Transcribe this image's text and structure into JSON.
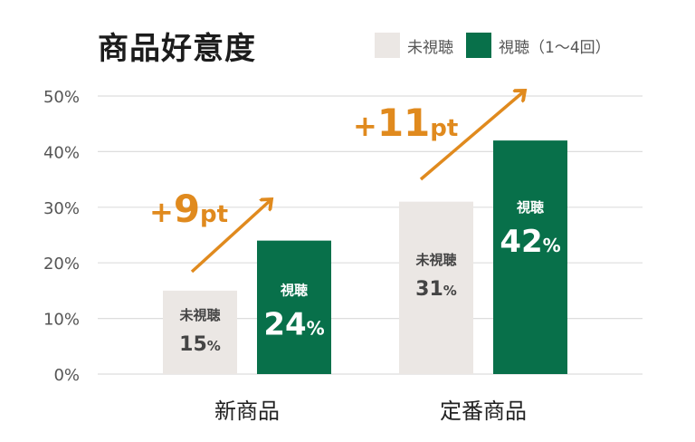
{
  "colors": {
    "unwatched": "#ebe7e4",
    "watched": "#08704a",
    "grid": "#dddddd",
    "arrow": "#e08a1e",
    "text_dark": "#444444"
  },
  "chart_data": {
    "type": "bar",
    "title": "商品好意度",
    "categories": [
      "新商品",
      "定番商品"
    ],
    "series": [
      {
        "name": "未視聴",
        "values": [
          15,
          31
        ]
      },
      {
        "name": "視聴（1〜4回）",
        "values": [
          24,
          42
        ]
      }
    ],
    "yticks": [
      "0%",
      "10%",
      "20%",
      "30%",
      "40%",
      "50%"
    ],
    "ylim": [
      0,
      50
    ],
    "grid": true,
    "legend": "top-right",
    "bar_captions": [
      "未視聴",
      "視聴"
    ],
    "data_labels": [
      [
        "15%",
        "24%"
      ],
      [
        "31%",
        "42%"
      ]
    ],
    "annotations": [
      "+9pt",
      "+11pt"
    ]
  }
}
